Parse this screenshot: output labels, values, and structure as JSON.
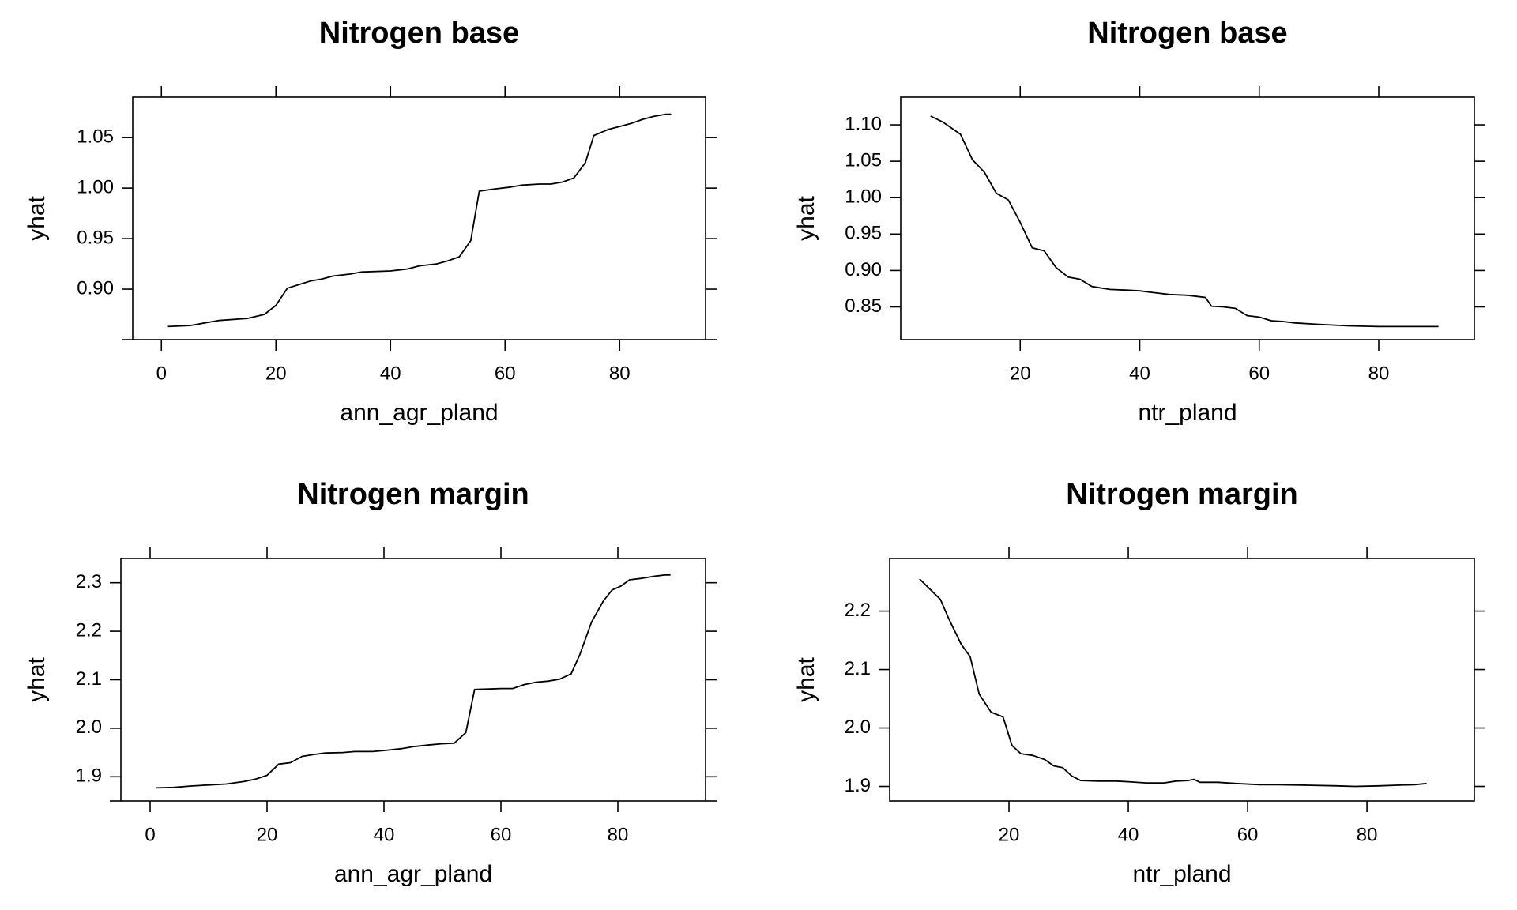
{
  "chart_data": [
    {
      "type": "line",
      "title": "Nitrogen base",
      "xlabel": "ann_agr_pland",
      "ylabel": "yhat",
      "xlim": [
        -5,
        95
      ],
      "ylim": [
        0.85,
        1.09
      ],
      "xticks": [
        0,
        20,
        40,
        60,
        80
      ],
      "yticks": [
        0.9,
        0.95,
        1.0,
        1.05
      ],
      "ytick_labels": [
        "0.90",
        "0.95",
        "1.00",
        "1.05"
      ],
      "series": [
        {
          "x": [
            1,
            5,
            10,
            15,
            18,
            20,
            22,
            26,
            28,
            30,
            33,
            35,
            40,
            43,
            45,
            48,
            50,
            52,
            54,
            55.5,
            58,
            61,
            63,
            66,
            68,
            70,
            72,
            74,
            75.5,
            78,
            80,
            82,
            84,
            86,
            88,
            89
          ],
          "y": [
            0.863,
            0.864,
            0.869,
            0.871,
            0.875,
            0.884,
            0.901,
            0.908,
            0.91,
            0.913,
            0.915,
            0.917,
            0.918,
            0.92,
            0.923,
            0.925,
            0.928,
            0.932,
            0.948,
            0.997,
            0.999,
            1.001,
            1.003,
            1.004,
            1.004,
            1.006,
            1.01,
            1.025,
            1.052,
            1.058,
            1.061,
            1.064,
            1.068,
            1.071,
            1.073,
            1.073
          ]
        }
      ]
    },
    {
      "type": "line",
      "title": "Nitrogen base",
      "xlabel": "ntr_pland",
      "ylabel": "yhat",
      "xlim": [
        0,
        96
      ],
      "ylim": [
        0.805,
        1.138
      ],
      "xticks": [
        20,
        40,
        60,
        80
      ],
      "yticks": [
        0.85,
        0.9,
        0.95,
        1.0,
        1.05,
        1.1
      ],
      "ytick_labels": [
        "0.85",
        "0.90",
        "0.95",
        "1.00",
        "1.05",
        "1.10"
      ],
      "series": [
        {
          "x": [
            5,
            7,
            10,
            12,
            14,
            16,
            18,
            20,
            22,
            24,
            26,
            28,
            30,
            32,
            35,
            38,
            40,
            42,
            45,
            48,
            51,
            52,
            54,
            56,
            58,
            60,
            62,
            64,
            66,
            70,
            75,
            80,
            85,
            90
          ],
          "y": [
            1.112,
            1.104,
            1.087,
            1.052,
            1.035,
            1.006,
            0.997,
            0.966,
            0.931,
            0.927,
            0.904,
            0.891,
            0.888,
            0.878,
            0.874,
            0.873,
            0.872,
            0.87,
            0.867,
            0.866,
            0.863,
            0.851,
            0.85,
            0.848,
            0.838,
            0.836,
            0.831,
            0.83,
            0.828,
            0.826,
            0.824,
            0.823,
            0.823,
            0.823
          ]
        }
      ]
    },
    {
      "type": "line",
      "title": "Nitrogen margin",
      "xlabel": "ann_agr_pland",
      "ylabel": "yhat",
      "xlim": [
        -5,
        95
      ],
      "ylim": [
        1.85,
        2.35
      ],
      "xticks": [
        0,
        20,
        40,
        60,
        80
      ],
      "yticks": [
        1.9,
        2.0,
        2.1,
        2.2,
        2.3
      ],
      "ytick_labels": [
        "1.9",
        "2.0",
        "2.1",
        "2.2",
        "2.3"
      ],
      "series": [
        {
          "x": [
            1,
            4,
            7,
            10,
            13,
            16,
            18,
            20,
            22,
            24,
            26,
            28,
            30,
            33,
            35,
            38,
            40,
            43,
            45,
            48,
            50,
            52,
            54,
            55.5,
            58,
            60,
            62,
            64,
            66,
            68,
            70,
            72,
            73.5,
            75.5,
            77.5,
            79,
            80.5,
            82,
            84,
            86,
            88,
            89
          ],
          "y": [
            1.877,
            1.878,
            1.881,
            1.883,
            1.885,
            1.89,
            1.895,
            1.903,
            1.926,
            1.929,
            1.942,
            1.946,
            1.949,
            1.95,
            1.952,
            1.952,
            1.954,
            1.958,
            1.962,
            1.966,
            1.968,
            1.969,
            1.991,
            2.08,
            2.081,
            2.082,
            2.082,
            2.09,
            2.095,
            2.097,
            2.101,
            2.112,
            2.152,
            2.219,
            2.262,
            2.285,
            2.293,
            2.306,
            2.309,
            2.313,
            2.316,
            2.316
          ]
        }
      ]
    },
    {
      "type": "line",
      "title": "Nitrogen margin",
      "xlabel": "ntr_pland",
      "ylabel": "yhat",
      "xlim": [
        0,
        98
      ],
      "ylim": [
        1.875,
        2.29
      ],
      "xticks": [
        20,
        40,
        60,
        80
      ],
      "yticks": [
        1.9,
        2.0,
        2.1,
        2.2
      ],
      "ytick_labels": [
        "1.9",
        "2.0",
        "2.1",
        "2.2"
      ],
      "series": [
        {
          "x": [
            5,
            7,
            8.5,
            10,
            12,
            13.5,
            15,
            17,
            19,
            20.5,
            22,
            24,
            26,
            27.5,
            29,
            30.5,
            32,
            35,
            38,
            40,
            43,
            46,
            48,
            50,
            51,
            52,
            55,
            58,
            62,
            65,
            70,
            75,
            78,
            82,
            85,
            88,
            90
          ],
          "y": [
            2.255,
            2.235,
            2.22,
            2.185,
            2.143,
            2.122,
            2.058,
            2.027,
            2.019,
            1.97,
            1.956,
            1.953,
            1.946,
            1.935,
            1.932,
            1.918,
            1.91,
            1.909,
            1.909,
            1.908,
            1.906,
            1.906,
            1.909,
            1.91,
            1.912,
            1.907,
            1.907,
            1.905,
            1.903,
            1.903,
            1.902,
            1.901,
            1.9,
            1.901,
            1.902,
            1.903,
            1.905
          ]
        }
      ]
    }
  ]
}
